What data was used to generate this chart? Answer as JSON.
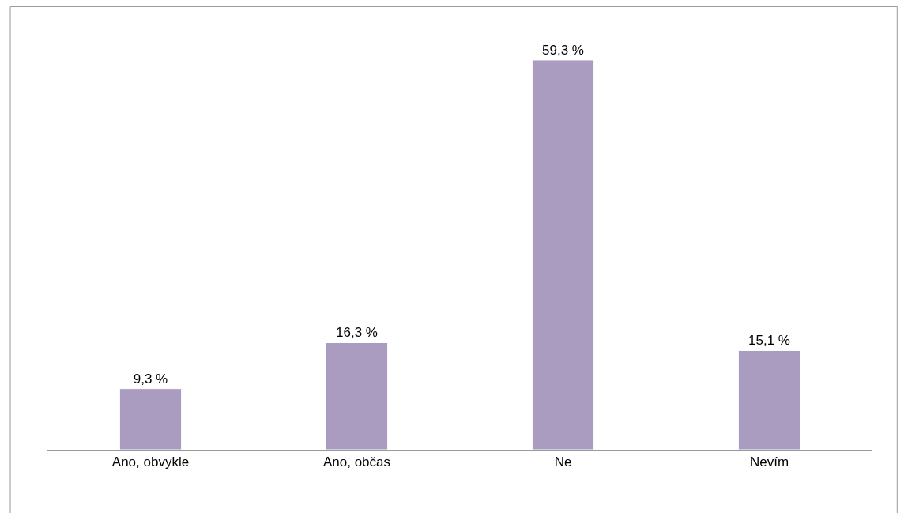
{
  "chart_data": {
    "type": "bar",
    "categories": [
      "Ano, obvykle",
      "Ano, občas",
      "Ne",
      "Nevím"
    ],
    "values": [
      9.3,
      16.3,
      59.3,
      15.1
    ],
    "value_labels": [
      "9,3 %",
      "16,3 %",
      "59,3 %",
      "15,1 %"
    ],
    "color": "#a99cc0",
    "legend": false
  }
}
